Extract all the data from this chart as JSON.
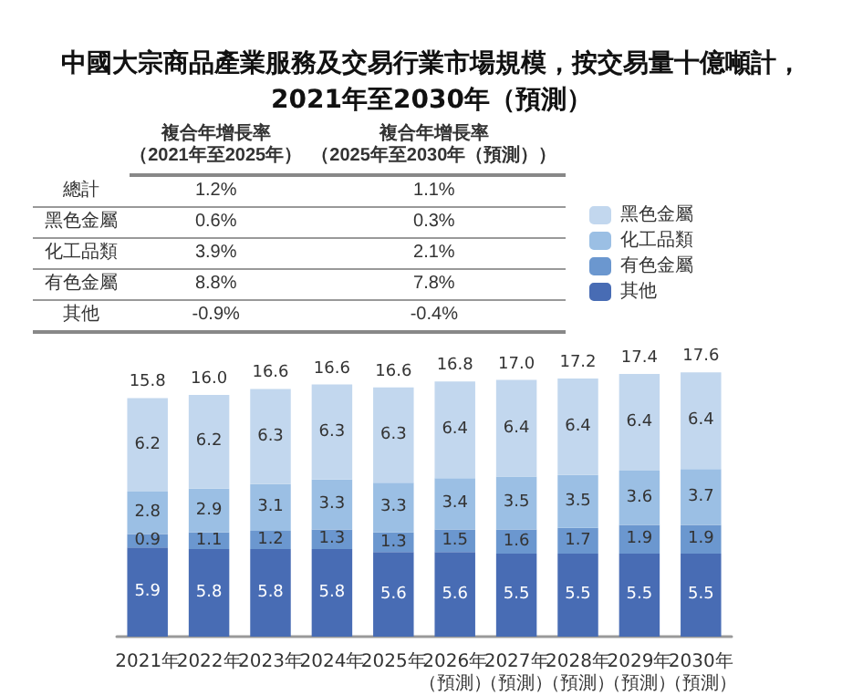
{
  "chart_data": {
    "type": "bar",
    "stacked": true,
    "title": "中國大宗商品產業服務及交易行業市場規模，按交易量十億噸計，\n2021年至2030年（預測）",
    "categories": [
      "2021年",
      "2022年",
      "2023年",
      "2024年",
      "2025年",
      "2026年（預測）",
      "2027年（預測）",
      "2028年（預測）",
      "2029年（預測）",
      "2030年（預測）"
    ],
    "series": [
      {
        "name": "其他",
        "color": "#486cb4",
        "values": [
          5.9,
          5.8,
          5.8,
          5.8,
          5.6,
          5.6,
          5.5,
          5.5,
          5.5,
          5.5
        ]
      },
      {
        "name": "有色金屬",
        "color": "#6b97cf",
        "values": [
          0.9,
          1.1,
          1.2,
          1.3,
          1.3,
          1.5,
          1.6,
          1.7,
          1.9,
          1.9
        ]
      },
      {
        "name": "化工品類",
        "color": "#9bbfe4",
        "values": [
          2.8,
          2.9,
          3.1,
          3.3,
          3.3,
          3.4,
          3.5,
          3.5,
          3.6,
          3.7
        ]
      },
      {
        "name": "黑色金屬",
        "color": "#c2d7ee",
        "values": [
          6.2,
          6.2,
          6.3,
          6.3,
          6.3,
          6.4,
          6.4,
          6.4,
          6.4,
          6.4
        ]
      }
    ],
    "totals": [
      "15.8",
      "16.0",
      "16.6",
      "16.6",
      "16.6",
      "16.8",
      "17.0",
      "17.2",
      "17.4",
      "17.6"
    ],
    "data_labels": true,
    "legend": "top right",
    "annotations": [
      "複合年增長率（2021年至2025年）",
      "複合年增長率（2025年至2030年（預測））",
      "總計",
      "1.2%",
      "1.1%",
      "黑色金屬",
      "0.6%",
      "0.3%",
      "化工品類",
      "3.9%",
      "2.1%",
      "有色金屬",
      "8.8%",
      "7.8%",
      "其他",
      "-0.9%",
      "-0.4%"
    ]
  }
}
